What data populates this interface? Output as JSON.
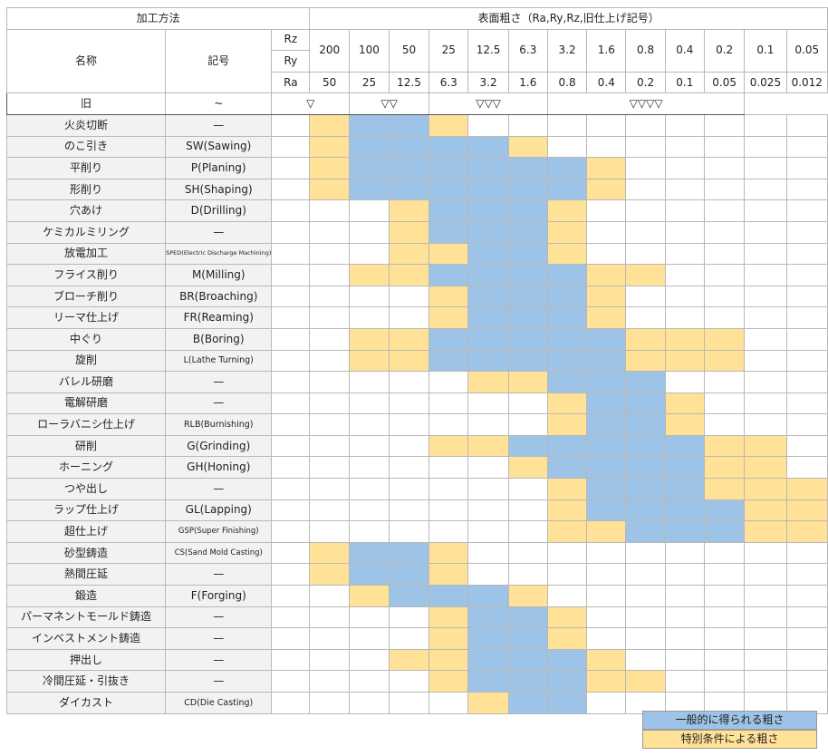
{
  "header": {
    "method": "加工方法",
    "roughness": "表面粗さ（Ra,Ry,Rz,旧仕上げ記号）",
    "name": "名称",
    "code": "記号",
    "row_labels": [
      "Rz",
      "Ry",
      "Ra",
      "旧"
    ],
    "rz": [
      "200",
      "100",
      "50",
      "25",
      "12.5",
      "6.3",
      "3.2",
      "1.6",
      "0.8",
      "0.4",
      "0.2",
      "0.1",
      "0.05"
    ],
    "ra": [
      "50",
      "25",
      "12.5",
      "6.3",
      "3.2",
      "1.6",
      "0.8",
      "0.4",
      "0.2",
      "0.1",
      "0.05",
      "0.025",
      "0.012"
    ],
    "old": [
      "~",
      "▽",
      "▽▽",
      "▽▽▽",
      "▽▽▽▽"
    ]
  },
  "colors": {
    "general": "#9dc3e6",
    "special": "#ffe198"
  },
  "rows": [
    {
      "name": "火炎切断",
      "code": "—",
      "cells": "YBBYWWWWWWWWW",
      "group": true
    },
    {
      "name": "のこ引き",
      "code": "SW(Sawing)",
      "cells": "YBBBBYWWWWWWW"
    },
    {
      "name": "平削り",
      "code": "P(Planing)",
      "cells": "YBBBBBBYWWWWW"
    },
    {
      "name": "形削り",
      "code": "SH(Shaping)",
      "cells": "YBBBBBBYWWWWW"
    },
    {
      "name": "穴あけ",
      "code": "D(Drilling)",
      "cells": "WWYBBBYWWWWWW",
      "group": true
    },
    {
      "name": "ケミカルミリング",
      "code": "—",
      "cells": "WWYBBBYWWWWWW"
    },
    {
      "name": "放電加工",
      "code": "SPED(Electric Discharge Machining)",
      "cells": "WWYYBBYWWWWWW",
      "size": "sm"
    },
    {
      "name": "フライス削り",
      "code": "M(Milling)",
      "cells": "WYYBBBBYYWWWW"
    },
    {
      "name": "ブローチ削り",
      "code": "BR(Broaching)",
      "cells": "WWWYBBBYWWWWW",
      "group": true
    },
    {
      "name": "リーマ仕上げ",
      "code": "FR(Reaming)",
      "cells": "WWWYBBBYWWWWW"
    },
    {
      "name": "中ぐり",
      "code": "B(Boring)",
      "cells": "WYYBBBBBYYYWW"
    },
    {
      "name": "旋削",
      "code": "L(Lathe Turning)",
      "cells": "WYYBBBBBYYYWW",
      "size": "lg"
    },
    {
      "name": "バレル研磨",
      "code": "—",
      "cells": "WWWWYYBBBWWWW"
    },
    {
      "name": "電解研磨",
      "code": "—",
      "cells": "WWWWWWYBBYWWW",
      "group": true
    },
    {
      "name": "ローラバニシ仕上げ",
      "code": "RLB(Burnishing)",
      "cells": "WWWWWWYBBYWWW",
      "size": "lg"
    },
    {
      "name": "研削",
      "code": "G(Grinding)",
      "cells": "WWWYYBBBBBYYW"
    },
    {
      "name": "ホーニング",
      "code": "GH(Honing)",
      "cells": "WWWWWYBBBBYYW"
    },
    {
      "name": "つや出し",
      "code": "—",
      "cells": "WWWWWWYBBBYYY",
      "group": true
    },
    {
      "name": "ラップ仕上げ",
      "code": "GL(Lapping)",
      "cells": "WWWWWWYBBBBYY"
    },
    {
      "name": "超仕上げ",
      "code": "GSP(Super Finishing)",
      "cells": "WWWWWWYYBBBYY",
      "size": "md"
    },
    {
      "name": "砂型鋳造",
      "code": "CS(Sand Mold Casting)",
      "cells": "YBBYWWWWWWWWW",
      "group": true,
      "size": "md"
    },
    {
      "name": "熱間圧延",
      "code": "—",
      "cells": "YBBYWWWWWWWWW"
    },
    {
      "name": "鍛造",
      "code": "F(Forging)",
      "cells": "WYBBBYWWWWWWW",
      "group": true
    },
    {
      "name": "パーマネントモールド鋳造",
      "code": "—",
      "cells": "WWWYBBYWWWWWW"
    },
    {
      "name": "インベストメント鋳造",
      "code": "—",
      "cells": "WWWYBBYWWWWWW",
      "group": true
    },
    {
      "name": "押出し",
      "code": "—",
      "cells": "WWYYBBBYWWWWW"
    },
    {
      "name": "冷間圧延・引抜き",
      "code": "—",
      "cells": "WWWYBBBYYWWWW"
    },
    {
      "name": "ダイカスト",
      "code": "CD(Die Casting)",
      "cells": "WWWWYBBWWWWWW",
      "size": "lg"
    }
  ],
  "legend": {
    "general": "一般的に得られる粗さ",
    "special": "特別条件による粗さ"
  }
}
